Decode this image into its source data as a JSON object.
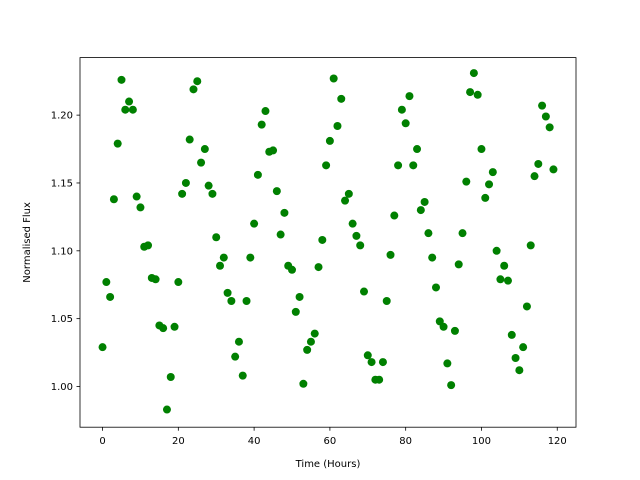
{
  "chart_data": {
    "type": "scatter",
    "x_label": "Time (Hours)",
    "y_label": "Normalised Flux",
    "color": "#008000",
    "x": [
      0,
      1,
      2,
      3,
      4,
      5,
      6,
      7,
      8,
      9,
      10,
      11,
      12,
      13,
      14,
      15,
      16,
      17,
      18,
      19,
      20,
      21,
      22,
      23,
      24,
      25,
      26,
      27,
      28,
      29,
      30,
      31,
      32,
      33,
      34,
      35,
      36,
      37,
      38,
      39,
      40,
      41,
      42,
      43,
      44,
      45,
      46,
      47,
      48,
      49,
      50,
      51,
      52,
      53,
      54,
      55,
      56,
      57,
      58,
      59,
      60,
      61,
      62,
      63,
      64,
      65,
      66,
      67,
      68,
      69,
      70,
      71,
      72,
      73,
      74,
      75,
      76,
      77,
      78,
      79,
      80,
      81,
      82,
      83,
      84,
      85,
      86,
      87,
      88,
      89,
      90,
      91,
      92,
      93,
      94,
      95,
      96,
      97,
      98,
      99,
      100,
      101,
      102,
      103,
      104,
      105,
      106,
      107,
      108,
      109,
      110,
      111,
      112,
      113,
      114,
      115,
      116,
      117,
      118,
      119
    ],
    "values": [
      1.029,
      1.077,
      1.066,
      1.138,
      1.179,
      1.226,
      1.204,
      1.21,
      1.204,
      1.14,
      1.132,
      1.103,
      1.104,
      1.08,
      1.079,
      1.045,
      1.043,
      0.983,
      1.007,
      1.044,
      1.077,
      1.142,
      1.15,
      1.182,
      1.219,
      1.225,
      1.165,
      1.175,
      1.148,
      1.142,
      1.11,
      1.089,
      1.095,
      1.069,
      1.063,
      1.022,
      1.033,
      1.008,
      1.063,
      1.095,
      1.12,
      1.156,
      1.193,
      1.203,
      1.173,
      1.174,
      1.144,
      1.112,
      1.128,
      1.089,
      1.086,
      1.055,
      1.066,
      1.002,
      1.027,
      1.033,
      1.039,
      1.088,
      1.108,
      1.163,
      1.181,
      1.227,
      1.192,
      1.212,
      1.137,
      1.142,
      1.12,
      1.111,
      1.104,
      1.07,
      1.023,
      1.018,
      1.005,
      1.005,
      1.018,
      1.063,
      1.097,
      1.126,
      1.163,
      1.204,
      1.194,
      1.214,
      1.163,
      1.175,
      1.13,
      1.136,
      1.113,
      1.095,
      1.073,
      1.048,
      1.044,
      1.017,
      1.001,
      1.041,
      1.09,
      1.113,
      1.151,
      1.217,
      1.231,
      1.215,
      1.175,
      1.139,
      1.149,
      1.158,
      1.1,
      1.079,
      1.089,
      1.078,
      1.038,
      1.021,
      1.012,
      1.029,
      1.059,
      1.104,
      1.155,
      1.164,
      1.207,
      1.199,
      1.191,
      1.16
    ],
    "xlim": [
      -5.95,
      124.95
    ],
    "ylim": [
      0.97,
      1.2424
    ],
    "xticks": [
      0,
      20,
      40,
      60,
      80,
      100,
      120
    ],
    "yticks": [
      {
        "value": 1.0,
        "label": "1.00"
      },
      1.05,
      {
        "value": 1.1,
        "label": "1.10"
      },
      1.15,
      {
        "value": 1.2,
        "label": "1.20"
      }
    ]
  }
}
